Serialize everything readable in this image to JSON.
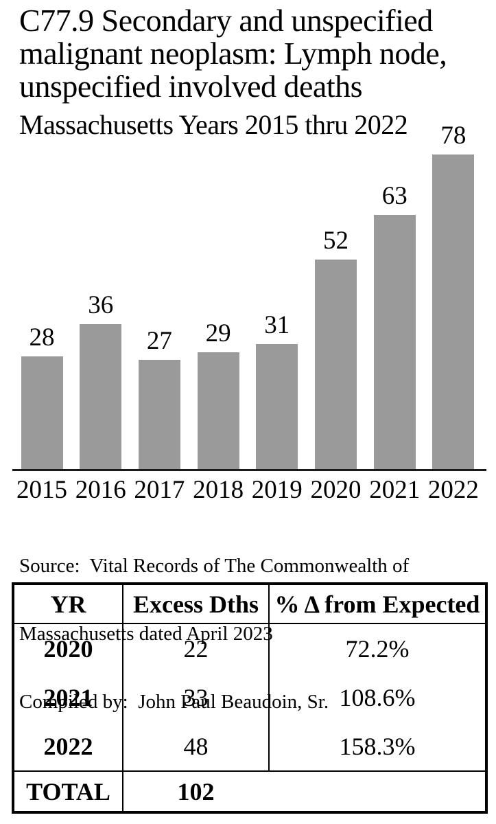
{
  "title": "C77.9 Secondary and unspecified malignant neoplasm: Lymph node, unspecified involved deaths",
  "subtitle": "Massachusetts Years 2015 thru 2022",
  "chart_data": {
    "type": "bar",
    "categories": [
      "2015",
      "2016",
      "2017",
      "2018",
      "2019",
      "2020",
      "2021",
      "2022"
    ],
    "values": [
      28,
      36,
      27,
      29,
      31,
      52,
      63,
      78
    ],
    "title": "C77.9 Secondary and unspecified malignant neoplasm: Lymph node, unspecified involved deaths",
    "subtitle": "Massachusetts Years 2015 thru 2022",
    "xlabel": "",
    "ylabel": "",
    "ylim": [
      0,
      78
    ],
    "grid": false,
    "legend": false,
    "bar_color": "#9a9a9a",
    "data_labels": [
      28,
      36,
      27,
      29,
      31,
      52,
      63,
      78
    ]
  },
  "source": {
    "line1": "Source:  Vital Records of The Commonwealth of",
    "line2": "Massachusetts dated April 2023",
    "line3": "Compiled by:  John Paul Beaudoin, Sr."
  },
  "table": {
    "headers": [
      "YR",
      "Excess Dths",
      "% Δ from Expected"
    ],
    "rows": [
      [
        "2020",
        "22",
        "72.2%"
      ],
      [
        "2021",
        "33",
        "108.6%"
      ],
      [
        "2022",
        "48",
        "158.3%"
      ]
    ],
    "total_label": "TOTAL",
    "total_value": "102"
  }
}
